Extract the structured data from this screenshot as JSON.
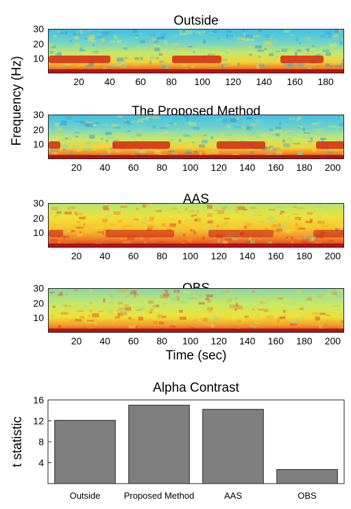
{
  "chart_data": [
    {
      "type": "heatmap",
      "title": "Outside",
      "ylabel": "Frequency (Hz)",
      "xlim": [
        0,
        192
      ],
      "ylim": [
        0,
        30
      ],
      "x_ticks": [
        "20",
        "40",
        "60",
        "80",
        "100",
        "120",
        "140",
        "160",
        "180"
      ],
      "y_ticks": [
        "10",
        "20",
        "30"
      ],
      "alpha_bursts_sec": [
        [
          0,
          40
        ],
        [
          80,
          112
        ],
        [
          150,
          178
        ]
      ]
    },
    {
      "type": "heatmap",
      "title": "The Proposed Method",
      "xlim": [
        0,
        208
      ],
      "ylim": [
        0,
        30
      ],
      "x_ticks": [
        "20",
        "40",
        "60",
        "80",
        "100",
        "120",
        "140",
        "160",
        "180",
        "200"
      ],
      "y_ticks": [
        "10",
        "20",
        "30"
      ],
      "alpha_bursts_sec": [
        [
          0,
          8
        ],
        [
          45,
          85
        ],
        [
          118,
          152
        ],
        [
          188,
          208
        ]
      ]
    },
    {
      "type": "heatmap",
      "title": "AAS",
      "xlim": [
        0,
        208
      ],
      "ylim": [
        0,
        30
      ],
      "x_ticks": [
        "20",
        "40",
        "60",
        "80",
        "100",
        "120",
        "140",
        "160",
        "180",
        "200"
      ],
      "y_ticks": [
        "10",
        "20",
        "30"
      ],
      "alpha_bursts_sec": [
        [
          0,
          10
        ],
        [
          40,
          88
        ],
        [
          112,
          158
        ],
        [
          186,
          208
        ]
      ]
    },
    {
      "type": "heatmap",
      "title": "OBS",
      "xlabel": "Time (sec)",
      "xlim": [
        0,
        208
      ],
      "ylim": [
        0,
        30
      ],
      "x_ticks": [
        "20",
        "40",
        "60",
        "80",
        "100",
        "120",
        "140",
        "160",
        "180",
        "200"
      ],
      "y_ticks": [
        "10",
        "20",
        "30"
      ],
      "alpha_bursts_sec": []
    },
    {
      "type": "bar",
      "title": "Alpha Contrast",
      "ylabel": "t statistic",
      "categories": [
        "Outside",
        "Proposed Method",
        "AAS",
        "OBS"
      ],
      "values": [
        12.1,
        15.0,
        14.2,
        2.7
      ],
      "ylim": [
        0,
        16
      ],
      "y_ticks": [
        "4",
        "8",
        "12",
        "16"
      ],
      "bar_color": "#7f7f7f"
    }
  ]
}
